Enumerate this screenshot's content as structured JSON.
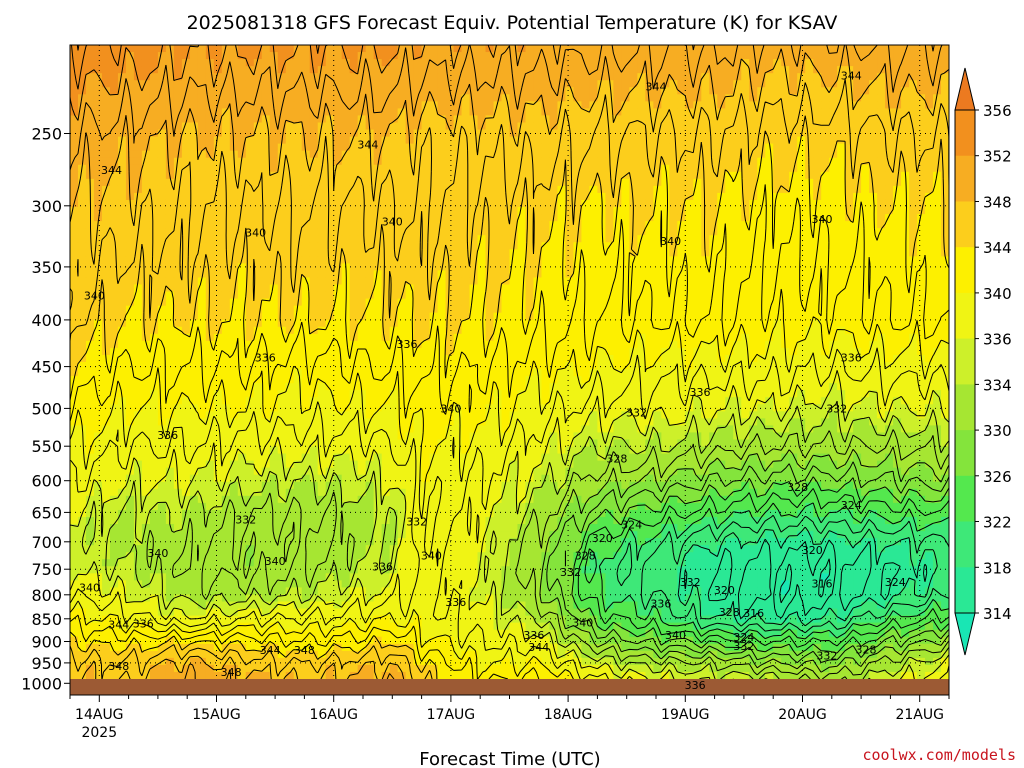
{
  "chart_data": {
    "type": "heatmap",
    "title": "2025081318 GFS Forecast Equiv. Potential Temperature (K) for KSAV",
    "xlabel": "Forecast Time (UTC)",
    "ylabel": "",
    "y_scale": "log-pressure",
    "ylim": [
      1030,
      200
    ],
    "y_ticks": [
      250,
      300,
      350,
      400,
      450,
      500,
      550,
      600,
      650,
      700,
      750,
      800,
      850,
      900,
      950,
      1000
    ],
    "x_ticks": [
      {
        "label": "14AUG",
        "sub": "2025",
        "hours": 6
      },
      {
        "label": "15AUG",
        "sub": "",
        "hours": 30
      },
      {
        "label": "16AUG",
        "sub": "",
        "hours": 54
      },
      {
        "label": "17AUG",
        "sub": "",
        "hours": 78
      },
      {
        "label": "18AUG",
        "sub": "",
        "hours": 102
      },
      {
        "label": "19AUG",
        "sub": "",
        "hours": 126
      },
      {
        "label": "20AUG",
        "sub": "",
        "hours": 150
      },
      {
        "label": "21AUG",
        "sub": "",
        "hours": 174
      }
    ],
    "xlim": [
      0,
      180
    ],
    "colorbar": {
      "levels": [
        314,
        318,
        322,
        326,
        330,
        334,
        336,
        340,
        344,
        348,
        352,
        356
      ],
      "labels": [
        "314",
        "318",
        "322",
        "326",
        "330",
        "334",
        "336",
        "340",
        "344",
        "348",
        "352",
        "356"
      ],
      "colors": [
        "#19e6b4",
        "#2ae895",
        "#3ee878",
        "#54e84e",
        "#84e43c",
        "#a6e632",
        "#cdf02a",
        "#f0f414",
        "#fdf000",
        "#fcce1c",
        "#f7ad22",
        "#f2901e",
        "#ec7a20"
      ]
    },
    "surface_color": "#9c5a34",
    "grid": true,
    "profiles": [
      {
        "hours": 0,
        "theta": [
          348,
          347,
          344,
          341,
          338,
          336,
          335,
          336,
          338,
          340,
          342,
          344,
          346,
          348,
          350
        ]
      },
      {
        "hours": 12,
        "theta": [
          348,
          346,
          343,
          339,
          336,
          334,
          333,
          334,
          336,
          338,
          340,
          342,
          344,
          347,
          349
        ]
      },
      {
        "hours": 24,
        "theta": [
          350,
          349,
          344,
          336,
          333,
          332,
          333,
          334,
          336,
          338,
          340,
          342,
          344,
          346,
          348
        ]
      },
      {
        "hours": 36,
        "theta": [
          349,
          347,
          343,
          338,
          333,
          331,
          331,
          332,
          335,
          337,
          340,
          342,
          344,
          346,
          348
        ]
      },
      {
        "hours": 48,
        "theta": [
          348,
          346,
          342,
          338,
          334,
          332,
          331,
          332,
          334,
          337,
          339,
          341,
          344,
          346,
          348
        ]
      },
      {
        "hours": 60,
        "theta": [
          349,
          347,
          343,
          339,
          336,
          334,
          333,
          333,
          335,
          337,
          340,
          342,
          344,
          346,
          348
        ]
      },
      {
        "hours": 66,
        "theta": [
          350,
          348,
          344,
          340,
          337,
          335,
          334,
          334,
          336,
          338,
          340,
          342,
          344,
          346,
          348
        ]
      },
      {
        "hours": 72,
        "theta": [
          346,
          344,
          341,
          339,
          339,
          339,
          339,
          339,
          339,
          340,
          341,
          343,
          344,
          346,
          347
        ]
      },
      {
        "hours": 84,
        "theta": [
          342,
          340,
          338,
          337,
          336,
          336,
          336,
          337,
          338,
          339,
          341,
          342,
          344,
          345,
          347
        ]
      },
      {
        "hours": 96,
        "theta": [
          343,
          340,
          337,
          334,
          331,
          330,
          331,
          333,
          335,
          337,
          339,
          341,
          343,
          345,
          347
        ]
      },
      {
        "hours": 108,
        "theta": [
          339,
          335,
          330,
          325,
          322,
          321,
          323,
          327,
          331,
          334,
          337,
          340,
          342,
          344,
          346
        ]
      },
      {
        "hours": 120,
        "theta": [
          337,
          333,
          327,
          322,
          320,
          319,
          321,
          325,
          330,
          334,
          337,
          339,
          342,
          344,
          346
        ]
      },
      {
        "hours": 132,
        "theta": [
          336,
          332,
          325,
          318,
          316,
          316,
          318,
          323,
          328,
          333,
          336,
          339,
          342,
          344,
          346
        ]
      },
      {
        "hours": 144,
        "theta": [
          336,
          330,
          324,
          317,
          315,
          315,
          317,
          322,
          327,
          332,
          336,
          339,
          341,
          343,
          345
        ]
      },
      {
        "hours": 156,
        "theta": [
          334,
          329,
          324,
          318,
          315,
          315,
          317,
          322,
          327,
          332,
          335,
          338,
          341,
          343,
          345
        ]
      },
      {
        "hours": 168,
        "theta": [
          336,
          333,
          328,
          322,
          317,
          316,
          318,
          323,
          328,
          332,
          336,
          339,
          342,
          344,
          346
        ]
      },
      {
        "hours": 180,
        "theta": [
          338,
          336,
          331,
          325,
          320,
          318,
          320,
          324,
          329,
          333,
          336,
          339,
          342,
          344,
          346
        ]
      }
    ],
    "profile_levels": [
      1000,
      950,
      900,
      850,
      800,
      750,
      700,
      650,
      600,
      550,
      500,
      450,
      400,
      300,
      250
    ],
    "annotations": [
      {
        "text": "344",
        "hours": 8.5,
        "p": 274
      },
      {
        "text": "344",
        "hours": 61,
        "p": 257
      },
      {
        "text": "344",
        "hours": 120,
        "p": 222
      },
      {
        "text": "344",
        "hours": 160,
        "p": 216
      },
      {
        "text": "340",
        "hours": 38,
        "p": 321
      },
      {
        "text": "340",
        "hours": 66,
        "p": 312
      },
      {
        "text": "340",
        "hours": 123,
        "p": 328
      },
      {
        "text": "340",
        "hours": 154,
        "p": 310
      },
      {
        "text": "340",
        "hours": 5,
        "p": 376
      },
      {
        "text": "336",
        "hours": 69,
        "p": 425
      },
      {
        "text": "336",
        "hours": 40,
        "p": 440
      },
      {
        "text": "336",
        "hours": 160,
        "p": 440
      },
      {
        "text": "336",
        "hours": 129,
        "p": 480
      },
      {
        "text": "336",
        "hours": 20,
        "p": 535
      },
      {
        "text": "340",
        "hours": 78,
        "p": 500
      },
      {
        "text": "332",
        "hours": 116,
        "p": 505
      },
      {
        "text": "332",
        "hours": 157,
        "p": 500
      },
      {
        "text": "328",
        "hours": 112,
        "p": 567
      },
      {
        "text": "328",
        "hours": 149,
        "p": 610
      },
      {
        "text": "324",
        "hours": 160,
        "p": 638
      },
      {
        "text": "324",
        "hours": 115,
        "p": 670
      },
      {
        "text": "332",
        "hours": 36,
        "p": 662
      },
      {
        "text": "332",
        "hours": 71,
        "p": 665
      },
      {
        "text": "320",
        "hours": 109,
        "p": 693
      },
      {
        "text": "320",
        "hours": 152,
        "p": 715
      },
      {
        "text": "340",
        "hours": 18,
        "p": 720
      },
      {
        "text": "340",
        "hours": 42,
        "p": 735
      },
      {
        "text": "336",
        "hours": 64,
        "p": 745
      },
      {
        "text": "340",
        "hours": 74,
        "p": 725
      },
      {
        "text": "328",
        "hours": 105.5,
        "p": 725
      },
      {
        "text": "332",
        "hours": 102.5,
        "p": 755
      },
      {
        "text": "316",
        "hours": 154,
        "p": 778
      },
      {
        "text": "324",
        "hours": 169,
        "p": 775
      },
      {
        "text": "332",
        "hours": 127,
        "p": 775
      },
      {
        "text": "320",
        "hours": 134,
        "p": 790
      },
      {
        "text": "340",
        "hours": 4,
        "p": 785
      },
      {
        "text": "336",
        "hours": 79,
        "p": 815
      },
      {
        "text": "336",
        "hours": 121,
        "p": 818
      },
      {
        "text": "328",
        "hours": 135,
        "p": 835
      },
      {
        "text": "316",
        "hours": 140,
        "p": 838
      },
      {
        "text": "344",
        "hours": 10,
        "p": 862
      },
      {
        "text": "336",
        "hours": 15,
        "p": 860
      },
      {
        "text": "340",
        "hours": 105,
        "p": 858
      },
      {
        "text": "336",
        "hours": 95,
        "p": 885
      },
      {
        "text": "340",
        "hours": 124,
        "p": 885
      },
      {
        "text": "324",
        "hours": 138,
        "p": 890
      },
      {
        "text": "332",
        "hours": 138,
        "p": 910
      },
      {
        "text": "344",
        "hours": 96,
        "p": 913
      },
      {
        "text": "344",
        "hours": 41,
        "p": 920
      },
      {
        "text": "348",
        "hours": 48,
        "p": 920
      },
      {
        "text": "328",
        "hours": 163,
        "p": 918
      },
      {
        "text": "332",
        "hours": 155,
        "p": 932
      },
      {
        "text": "348",
        "hours": 10,
        "p": 957
      },
      {
        "text": "348",
        "hours": 33,
        "p": 972
      },
      {
        "text": "336",
        "hours": 128,
        "p": 1004
      }
    ]
  },
  "watermark": "coolwx.com/models"
}
